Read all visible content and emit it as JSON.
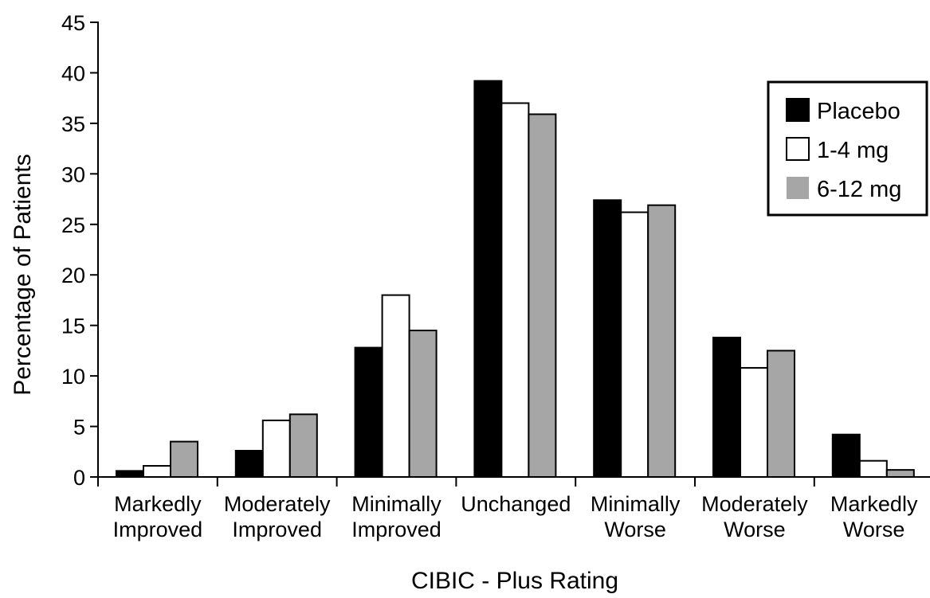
{
  "chart_data": {
    "type": "bar",
    "xlabel": "CIBIC - Plus Rating",
    "ylabel": "Percentage of Patients",
    "ylim": [
      0,
      45
    ],
    "yticks": [
      0,
      5,
      10,
      15,
      20,
      25,
      30,
      35,
      40,
      45
    ],
    "grid": false,
    "legend_position": "top-right",
    "categories": [
      [
        "Markedly",
        "Improved"
      ],
      [
        "Moderately",
        "Improved"
      ],
      [
        "Minimally",
        "Improved"
      ],
      [
        "Unchanged"
      ],
      [
        "Minimally",
        "Worse"
      ],
      [
        "Moderately",
        "Worse"
      ],
      [
        "Markedly",
        "Worse"
      ]
    ],
    "series": [
      {
        "name": "Placebo",
        "color": "#000000",
        "values": [
          0.6,
          2.6,
          12.8,
          39.2,
          27.4,
          13.8,
          4.2
        ]
      },
      {
        "name": "1-4 mg",
        "color": "#ffffff",
        "values": [
          1.1,
          5.6,
          18.0,
          37.0,
          26.2,
          10.8,
          1.6
        ]
      },
      {
        "name": "6-12 mg",
        "color": "#a6a6a6",
        "values": [
          3.5,
          6.2,
          14.5,
          35.9,
          26.9,
          12.5,
          0.7
        ]
      }
    ]
  }
}
